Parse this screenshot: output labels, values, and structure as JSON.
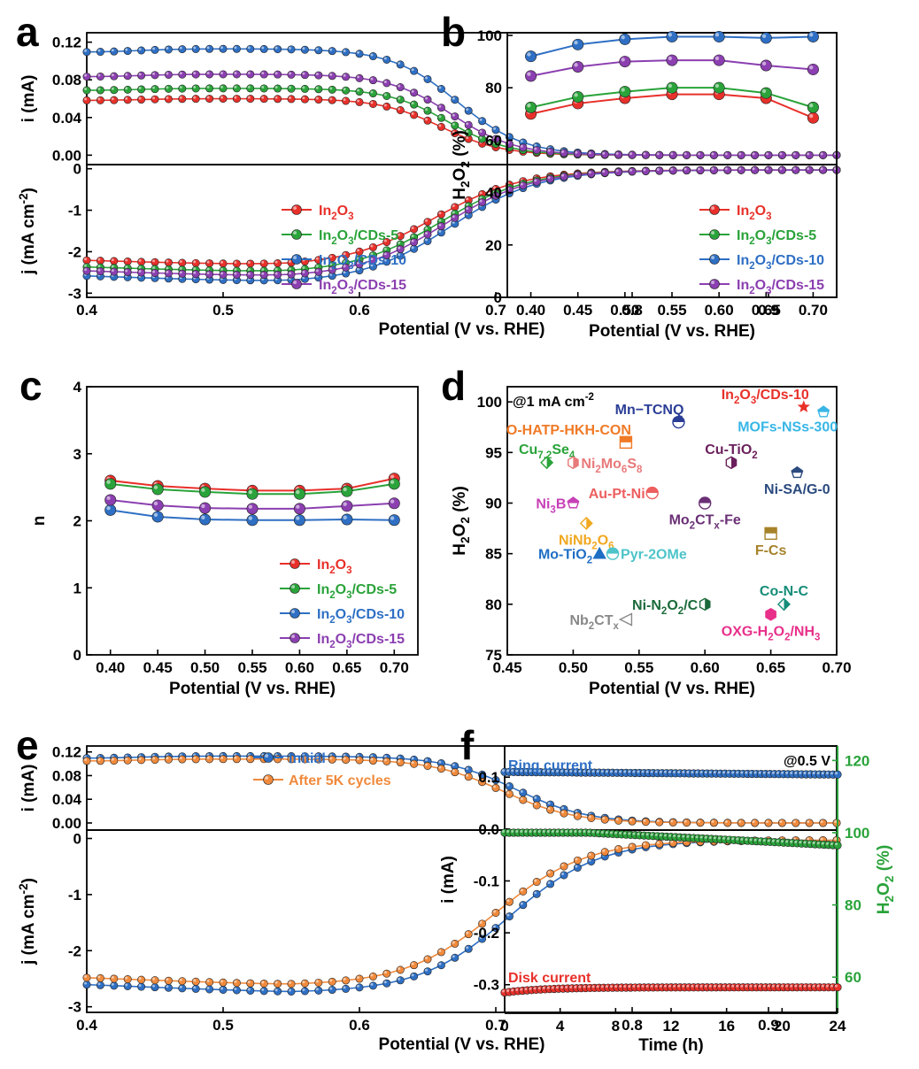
{
  "panels": [
    {
      "id": "a",
      "letter": "a",
      "type": "line-scatter",
      "split": true,
      "xlabel": "Potential (V vs. RHE)",
      "xlim": [
        0.4,
        0.95
      ],
      "xticks": [
        "0.4",
        "0.5",
        "0.6",
        "0.7",
        "0.8",
        "0.9"
      ],
      "top": {
        "ylabel": "i (mA)",
        "ylim": [
          -0.01,
          0.13
        ],
        "yticks": [
          "0.00",
          "0.04",
          "0.08",
          "0.12"
        ]
      },
      "bottom": {
        "ylabel": "j (mA cm-2)",
        "ylim": [
          -3.1,
          0.1
        ],
        "yticks": [
          "-3",
          "-2",
          "-1",
          "0"
        ]
      },
      "legend": [
        "In2O3",
        "In2O3/CDs-5",
        "In2O3/CDs-10",
        "In2O3/CDs-15"
      ]
    },
    {
      "id": "b",
      "letter": "b",
      "type": "line",
      "xlabel": "Potential (V vs. RHE)",
      "ylabel": "H2O2 (%)",
      "xlim": [
        0.375,
        0.725
      ],
      "ylim": [
        0,
        101
      ],
      "xticks": [
        "0.40",
        "0.45",
        "0.50",
        "0.55",
        "0.60",
        "0.65",
        "0.70"
      ],
      "yticks": [
        "0",
        "20",
        "40",
        "60",
        "80",
        "100"
      ],
      "legend": [
        "In2O3",
        "In2O3/CDs-5",
        "In2O3/CDs-10",
        "In2O3/CDs-15"
      ]
    },
    {
      "id": "c",
      "letter": "c",
      "type": "line",
      "xlabel": "Potential (V vs. RHE)",
      "ylabel": "n",
      "xlim": [
        0.375,
        0.725
      ],
      "ylim": [
        0,
        4
      ],
      "xticks": [
        "0.40",
        "0.45",
        "0.50",
        "0.55",
        "0.60",
        "0.65",
        "0.70"
      ],
      "yticks": [
        "0",
        "1",
        "2",
        "3",
        "4"
      ],
      "legend": [
        "In2O3",
        "In2O3/CDs-5",
        "In2O3/CDs-10",
        "In2O3/CDs-15"
      ]
    },
    {
      "id": "d",
      "letter": "d",
      "type": "scatter",
      "xlabel": "Potential (V vs. RHE)",
      "ylabel": "H2O2 (%)",
      "xlim": [
        0.45,
        0.7
      ],
      "ylim": [
        75,
        101.5
      ],
      "xticks": [
        "0.45",
        "0.50",
        "0.55",
        "0.60",
        "0.65",
        "0.70"
      ],
      "yticks": [
        "75",
        "80",
        "85",
        "90",
        "95",
        "100"
      ],
      "annotation": "@1 mA cm-2"
    },
    {
      "id": "e",
      "letter": "e",
      "type": "line-scatter",
      "split": true,
      "xlabel": "Potential (V vs. RHE)",
      "xlim": [
        0.4,
        0.95
      ],
      "xticks": [
        "0.4",
        "0.5",
        "0.6",
        "0.7",
        "0.8",
        "0.9"
      ],
      "top": {
        "ylabel": "i (mA)",
        "ylim": [
          -0.012,
          0.13
        ],
        "yticks": [
          "0.00",
          "0.04",
          "0.08",
          "0.12"
        ]
      },
      "bottom": {
        "ylabel": "j (mA cm-2)",
        "ylim": [
          -3.1,
          0.15
        ],
        "yticks": [
          "-3",
          "-2",
          "-1",
          "0"
        ]
      },
      "legend": [
        "Initial",
        "After 5K cycles"
      ]
    },
    {
      "id": "f",
      "letter": "f",
      "type": "line-scatter",
      "xlabel": "Time (h)",
      "ylabel": "i (mA)",
      "ylabel_right": "H2O2 (%)",
      "xlim": [
        0,
        24
      ],
      "ylim": [
        -0.355,
        0.16
      ],
      "ylim_right": [
        50,
        124
      ],
      "xticks": [
        "0",
        "4",
        "8",
        "12",
        "16",
        "20",
        "24"
      ],
      "yticks": [
        "-0.3",
        "-0.2",
        "-0.1",
        "0.0",
        "0.1"
      ],
      "yticks_right": [
        "60",
        "80",
        "100",
        "120"
      ],
      "annotation": "@0.5 V",
      "labels": [
        "Ring current",
        "Disk current"
      ]
    }
  ],
  "chart_data": [
    {
      "panel": "a",
      "type": "line",
      "series": [
        {
          "name": "In2O3",
          "color": "#e8302a",
          "ring_limit": 0.06,
          "disk_limit": -2.35
        },
        {
          "name": "In2O3/CDs-5",
          "color": "#2aa33a",
          "ring_limit": 0.071,
          "disk_limit": -2.52
        },
        {
          "name": "In2O3/CDs-10",
          "color": "#2e6fc4",
          "ring_limit": 0.113,
          "disk_limit": -2.75
        },
        {
          "name": "In2O3/CDs-15",
          "color": "#8b3fb0",
          "ring_limit": 0.086,
          "disk_limit": -2.62
        }
      ]
    },
    {
      "panel": "b",
      "type": "line",
      "x": [
        0.4,
        0.45,
        0.5,
        0.55,
        0.6,
        0.65,
        0.7
      ],
      "series": [
        {
          "name": "In2O3",
          "color": "#e8302a",
          "values": [
            70,
            74,
            76,
            77.5,
            77.5,
            76,
            68.5
          ]
        },
        {
          "name": "In2O3/CDs-5",
          "color": "#2aa33a",
          "values": [
            72.5,
            76.5,
            78.5,
            80,
            80,
            78,
            72.5
          ]
        },
        {
          "name": "In2O3/CDs-10",
          "color": "#2e6fc4",
          "values": [
            92,
            96.5,
            98.5,
            99.5,
            99.5,
            99,
            99.5
          ]
        },
        {
          "name": "In2O3/CDs-15",
          "color": "#8b3fb0",
          "values": [
            84.5,
            88,
            90,
            90.5,
            90.5,
            88.5,
            87
          ]
        }
      ]
    },
    {
      "panel": "c",
      "type": "line",
      "x": [
        0.4,
        0.45,
        0.5,
        0.55,
        0.6,
        0.65,
        0.7
      ],
      "series": [
        {
          "name": "In2O3",
          "color": "#e8302a",
          "values": [
            2.6,
            2.52,
            2.48,
            2.45,
            2.45,
            2.48,
            2.63
          ]
        },
        {
          "name": "In2O3/CDs-5",
          "color": "#2aa33a",
          "values": [
            2.55,
            2.47,
            2.43,
            2.4,
            2.4,
            2.44,
            2.55
          ]
        },
        {
          "name": "In2O3/CDs-10",
          "color": "#2e6fc4",
          "values": [
            2.16,
            2.06,
            2.02,
            2.01,
            2.01,
            2.02,
            2.01
          ]
        },
        {
          "name": "In2O3/CDs-15",
          "color": "#8b3fb0",
          "values": [
            2.31,
            2.23,
            2.19,
            2.18,
            2.18,
            2.22,
            2.26
          ]
        }
      ]
    },
    {
      "panel": "d",
      "type": "scatter",
      "points": [
        {
          "label": "In2O3/CDs-10",
          "x": 0.675,
          "y": 99.5,
          "color": "#e8302a",
          "marker": "star",
          "lpos": "top-left"
        },
        {
          "label": "MOFs-NSs-300",
          "x": 0.69,
          "y": 99.0,
          "color": "#38b6e6",
          "marker": "pentagon",
          "lpos": "bottom-left"
        },
        {
          "label": "Mn−TCNQ",
          "x": 0.58,
          "y": 98.0,
          "color": "#2b3e96",
          "marker": "circle-half",
          "lpos": "top-left"
        },
        {
          "label": "O-HATP-HKH-CON",
          "x": 0.54,
          "y": 96.0,
          "color": "#f07a26",
          "marker": "square-half",
          "lpos": "top-left"
        },
        {
          "label": "Cu7.2Se4",
          "x": 0.48,
          "y": 94.0,
          "color": "#2aa33a",
          "marker": "diamond-half",
          "lpos": "top"
        },
        {
          "label": "Ni2Mo6S8",
          "x": 0.5,
          "y": 94.0,
          "color": "#e8797a",
          "marker": "hexagon-half",
          "lpos": "right"
        },
        {
          "label": "Cu-TiO2",
          "x": 0.62,
          "y": 94.0,
          "color": "#6a1f5c",
          "marker": "hexagon-half",
          "lpos": "top"
        },
        {
          "label": "Ni-SA/G-0",
          "x": 0.67,
          "y": 93.0,
          "color": "#2b4a7e",
          "marker": "pentagon",
          "lpos": "bottom"
        },
        {
          "label": "Au-Pt-Ni",
          "x": 0.56,
          "y": 91.0,
          "color": "#ee5f5f",
          "marker": "circle-half",
          "lpos": "left"
        },
        {
          "label": "Ni3B",
          "x": 0.5,
          "y": 90.0,
          "color": "#c740b6",
          "marker": "pentagon",
          "lpos": "left"
        },
        {
          "label": "Mo2CTx-Fe",
          "x": 0.6,
          "y": 90.0,
          "color": "#6a2f75",
          "marker": "circle-half",
          "lpos": "bottom"
        },
        {
          "label": "NiNb2O6",
          "x": 0.51,
          "y": 88.0,
          "color": "#f0a81f",
          "marker": "diamond-half",
          "lpos": "bottom"
        },
        {
          "label": "F-Cs",
          "x": 0.65,
          "y": 87.0,
          "color": "#a6822a",
          "marker": "square-half",
          "lpos": "bottom"
        },
        {
          "label": "Mo-TiO2",
          "x": 0.52,
          "y": 85.0,
          "color": "#1f6fc4",
          "marker": "triangle",
          "lpos": "left"
        },
        {
          "label": "Pyr-2OMe",
          "x": 0.53,
          "y": 85.0,
          "color": "#4cc4c9",
          "marker": "circle-half",
          "lpos": "right"
        },
        {
          "label": "Co-N-C",
          "x": 0.66,
          "y": 80.0,
          "color": "#158c78",
          "marker": "diamond-half",
          "lpos": "top"
        },
        {
          "label": "Ni-N2O2/C",
          "x": 0.6,
          "y": 80.0,
          "color": "#1b6a3a",
          "marker": "hexagon-half",
          "lpos": "left"
        },
        {
          "label": "OXG-H2O2/NH3",
          "x": 0.65,
          "y": 79.0,
          "color": "#e8308a",
          "marker": "hexagon",
          "lpos": "bottom"
        },
        {
          "label": "Nb2CTx",
          "x": 0.54,
          "y": 78.5,
          "color": "#888888",
          "marker": "triangle-left",
          "lpos": "left"
        }
      ]
    },
    {
      "panel": "e",
      "type": "line",
      "series": [
        {
          "name": "Initial",
          "color": "#2e6fc4",
          "ring_limit": 0.113,
          "disk_limit": -2.75
        },
        {
          "name": "After 5K cycles",
          "color": "#f08a3c",
          "ring_limit": 0.108,
          "disk_limit": -2.62
        }
      ]
    },
    {
      "panel": "f",
      "type": "line",
      "series": [
        {
          "name": "Ring current",
          "color": "#2e6fc4",
          "axis": "left",
          "start": 0.11,
          "end": 0.105
        },
        {
          "name": "Disk current",
          "color": "#e8302a",
          "axis": "left",
          "start": -0.315,
          "end": -0.305
        },
        {
          "name": "H2O2 (%)",
          "color": "#2aa33a",
          "axis": "right",
          "start": 100.0,
          "end": 96.5
        }
      ]
    }
  ]
}
